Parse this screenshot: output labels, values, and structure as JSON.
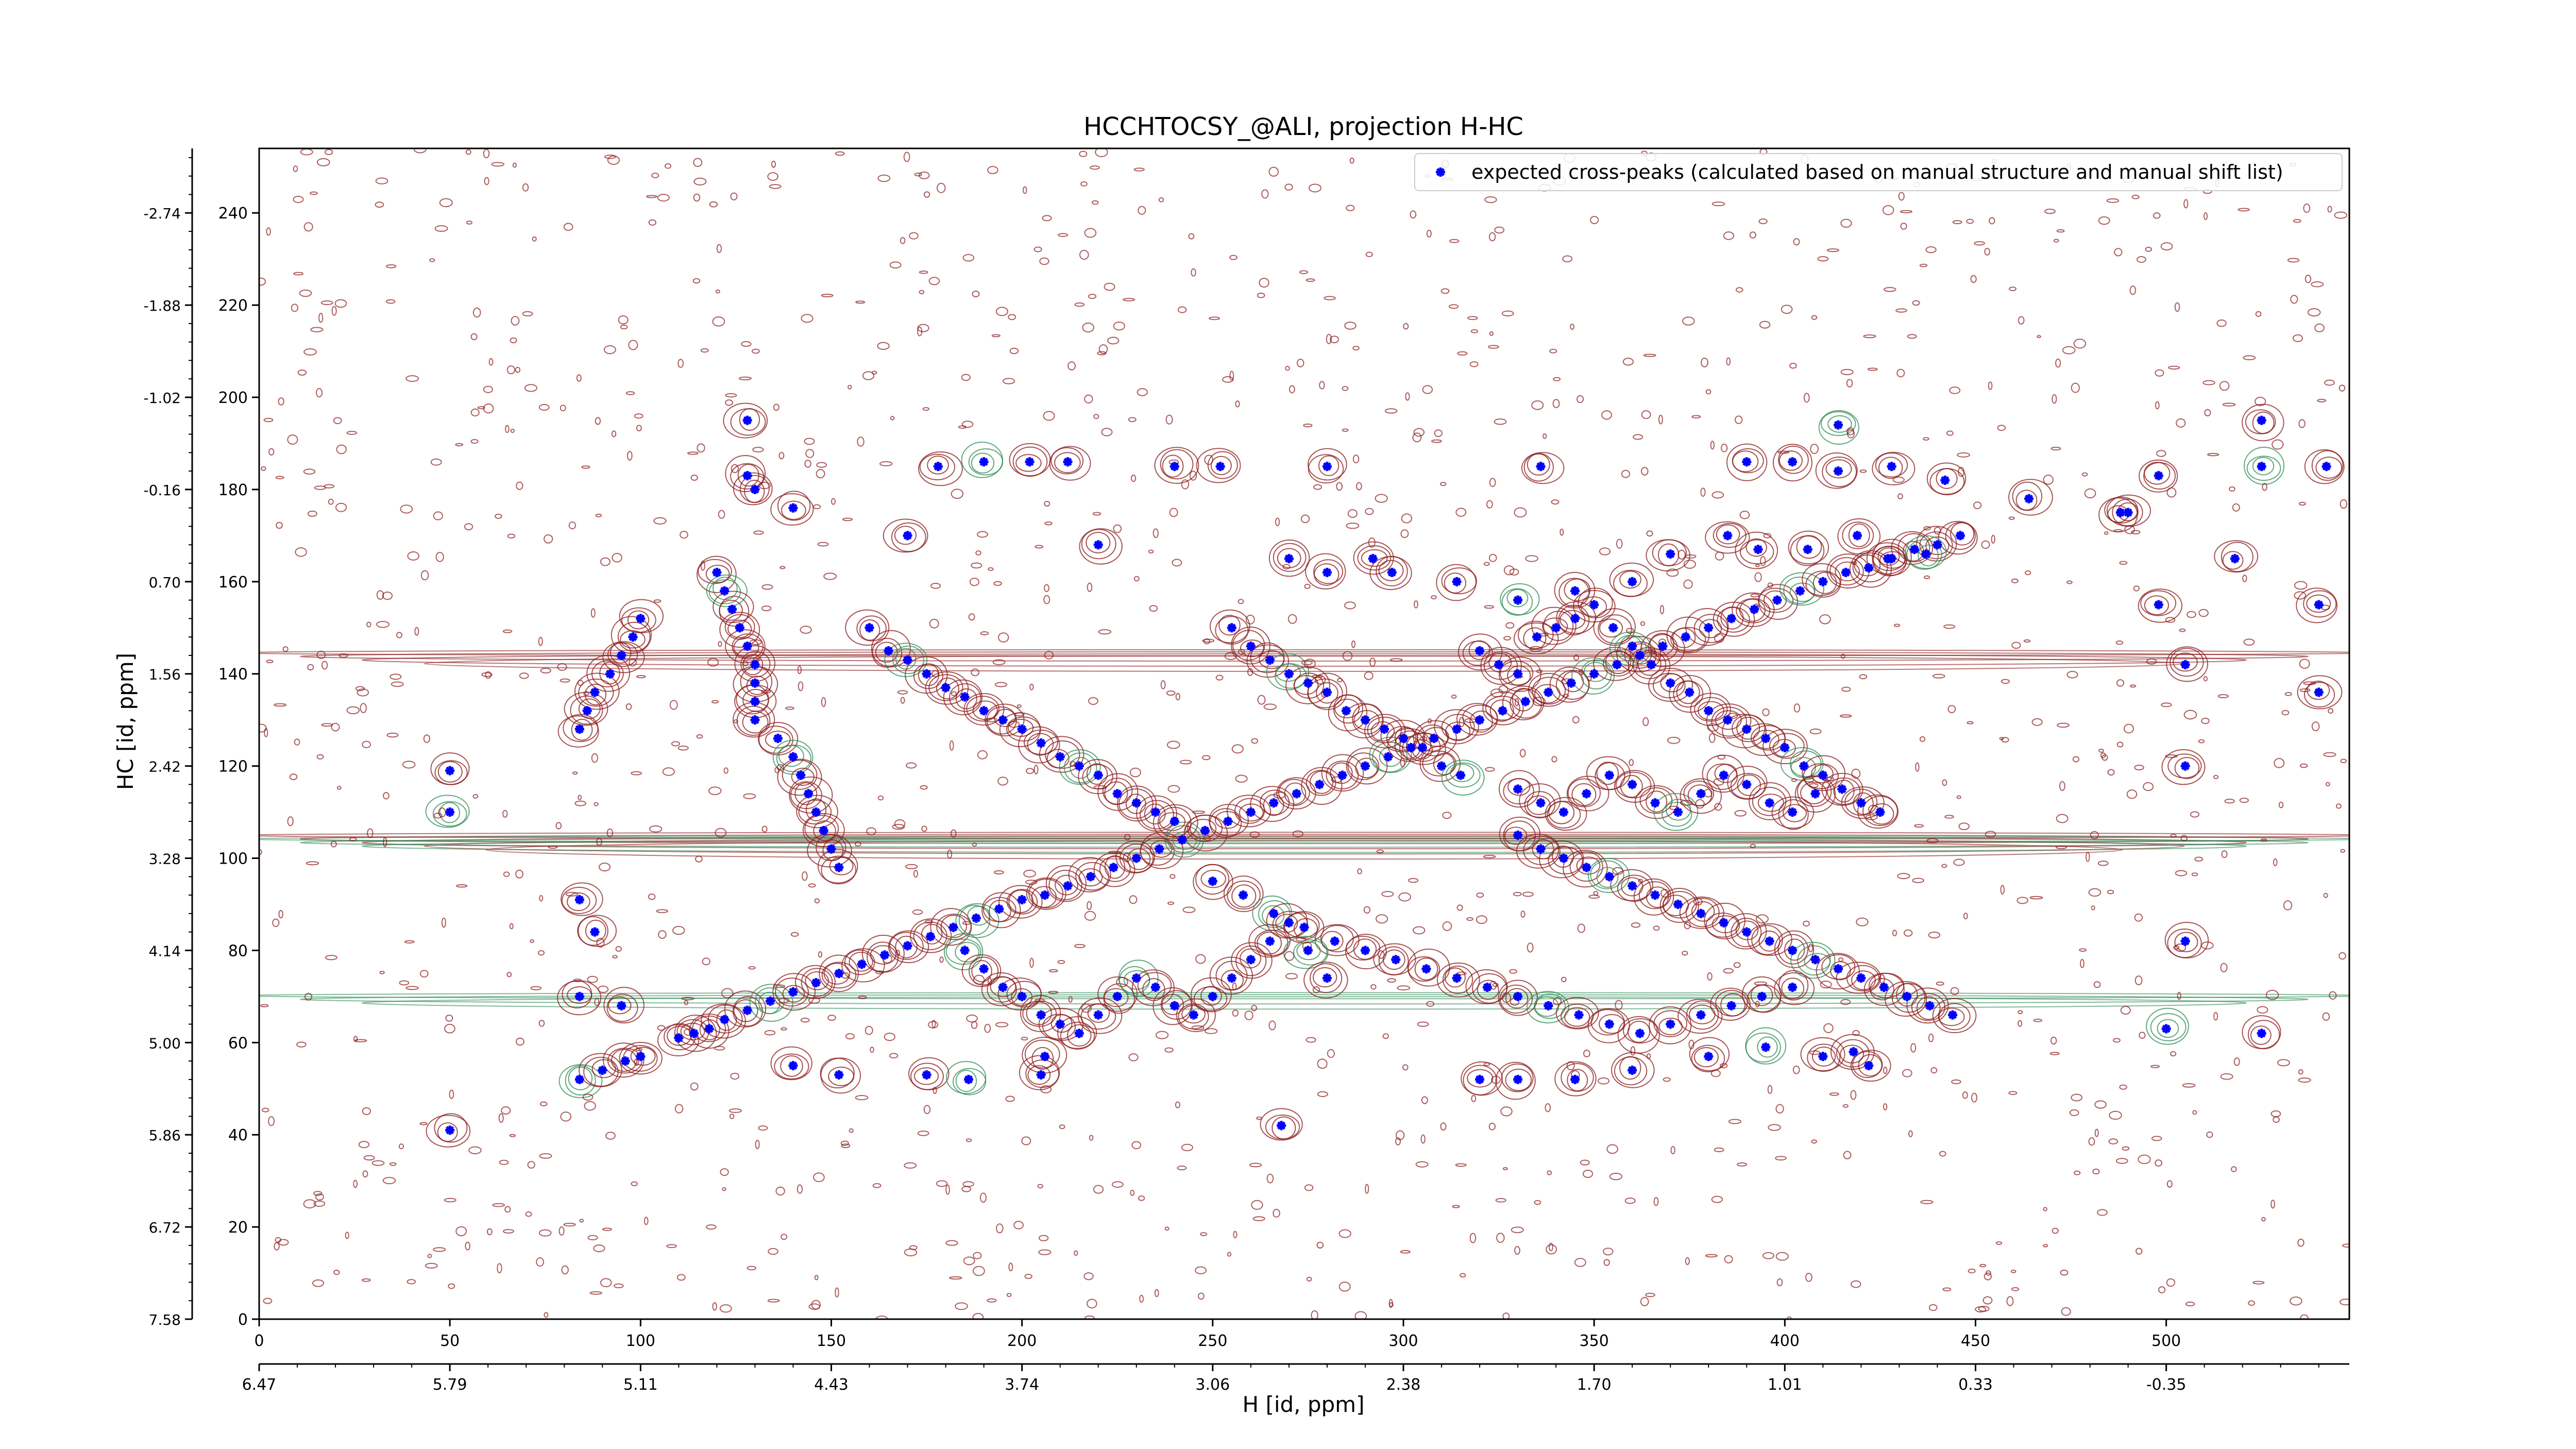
{
  "chart_data": {
    "type": "scatter",
    "title": "HCCHTOCSY_@ALI, projection H-HC",
    "xlabel": "H [id, ppm]",
    "ylabel": "HC [id, ppm]",
    "xlim": [
      0,
      548
    ],
    "ylim": [
      0,
      254
    ],
    "x_ticks": [
      0,
      50,
      100,
      150,
      200,
      250,
      300,
      350,
      400,
      450,
      500
    ],
    "y_ticks": [
      0,
      20,
      40,
      60,
      80,
      100,
      120,
      140,
      160,
      180,
      200,
      220,
      240
    ],
    "secondary_x_ticks": [
      {
        "pos": 0,
        "label": "6.47"
      },
      {
        "pos": 50,
        "label": "5.79"
      },
      {
        "pos": 100,
        "label": "5.11"
      },
      {
        "pos": 150,
        "label": "4.43"
      },
      {
        "pos": 200,
        "label": "3.74"
      },
      {
        "pos": 250,
        "label": "3.06"
      },
      {
        "pos": 300,
        "label": "2.38"
      },
      {
        "pos": 350,
        "label": "1.70"
      },
      {
        "pos": 400,
        "label": "1.01"
      },
      {
        "pos": 450,
        "label": "0.33"
      },
      {
        "pos": 500,
        "label": "-0.35"
      }
    ],
    "secondary_y_ticks": [
      {
        "pos": 0,
        "label": "7.58"
      },
      {
        "pos": 20,
        "label": "6.72"
      },
      {
        "pos": 40,
        "label": "5.86"
      },
      {
        "pos": 60,
        "label": "5.00"
      },
      {
        "pos": 80,
        "label": "4.14"
      },
      {
        "pos": 100,
        "label": "3.28"
      },
      {
        "pos": 120,
        "label": "2.42"
      },
      {
        "pos": 140,
        "label": "1.56"
      },
      {
        "pos": 160,
        "label": "0.70"
      },
      {
        "pos": 180,
        "label": "-0.16"
      },
      {
        "pos": 200,
        "label": "-1.02"
      },
      {
        "pos": 220,
        "label": "-1.88"
      },
      {
        "pos": 240,
        "label": "-2.74"
      }
    ],
    "legend": {
      "placement": "top-right",
      "entries": [
        "expected cross-peaks (calculated based on manual structure and manual shift list)"
      ]
    },
    "colors": {
      "marker": "#0000ff",
      "contour_positive": "#8b1a1a",
      "contour_negative": "#2e8b57",
      "frame": "#000000"
    },
    "series": [
      {
        "name": "expected cross-peaks (calculated based on manual structure and manual shift list)",
        "points": [
          [
            84,
            52
          ],
          [
            90,
            54
          ],
          [
            96,
            56
          ],
          [
            100,
            57
          ],
          [
            110,
            61
          ],
          [
            114,
            62
          ],
          [
            118,
            63
          ],
          [
            122,
            65
          ],
          [
            128,
            67
          ],
          [
            134,
            69
          ],
          [
            140,
            71
          ],
          [
            146,
            73
          ],
          [
            152,
            75
          ],
          [
            158,
            77
          ],
          [
            164,
            79
          ],
          [
            170,
            81
          ],
          [
            176,
            83
          ],
          [
            182,
            85
          ],
          [
            188,
            87
          ],
          [
            194,
            89
          ],
          [
            200,
            91
          ],
          [
            206,
            92
          ],
          [
            212,
            94
          ],
          [
            218,
            96
          ],
          [
            224,
            98
          ],
          [
            230,
            100
          ],
          [
            236,
            102
          ],
          [
            242,
            104
          ],
          [
            248,
            106
          ],
          [
            254,
            108
          ],
          [
            260,
            110
          ],
          [
            266,
            112
          ],
          [
            272,
            114
          ],
          [
            278,
            116
          ],
          [
            284,
            118
          ],
          [
            290,
            120
          ],
          [
            296,
            122
          ],
          [
            302,
            124
          ],
          [
            308,
            126
          ],
          [
            314,
            128
          ],
          [
            320,
            130
          ],
          [
            326,
            132
          ],
          [
            332,
            134
          ],
          [
            338,
            136
          ],
          [
            344,
            138
          ],
          [
            350,
            140
          ],
          [
            356,
            142
          ],
          [
            362,
            144
          ],
          [
            368,
            146
          ],
          [
            374,
            148
          ],
          [
            380,
            150
          ],
          [
            386,
            152
          ],
          [
            392,
            154
          ],
          [
            398,
            156
          ],
          [
            404,
            158
          ],
          [
            410,
            160
          ],
          [
            416,
            162
          ],
          [
            422,
            163
          ],
          [
            428,
            165
          ],
          [
            434,
            167
          ],
          [
            440,
            168
          ],
          [
            446,
            170
          ],
          [
            50,
            41
          ],
          [
            50,
            110
          ],
          [
            50,
            119
          ],
          [
            84,
            70
          ],
          [
            88,
            84
          ],
          [
            84,
            91
          ],
          [
            95,
            68
          ],
          [
            140,
            55
          ],
          [
            152,
            53
          ],
          [
            175,
            53
          ],
          [
            186,
            52
          ],
          [
            205,
            53
          ],
          [
            206,
            57
          ],
          [
            268,
            42
          ],
          [
            320,
            52
          ],
          [
            330,
            52
          ],
          [
            345,
            52
          ],
          [
            360,
            54
          ],
          [
            380,
            57
          ],
          [
            395,
            59
          ],
          [
            410,
            57
          ],
          [
            418,
            58
          ],
          [
            422,
            55
          ],
          [
            128,
            195
          ],
          [
            128,
            183
          ],
          [
            130,
            180
          ],
          [
            140,
            176
          ],
          [
            178,
            185
          ],
          [
            190,
            186
          ],
          [
            202,
            186
          ],
          [
            212,
            186
          ],
          [
            240,
            185
          ],
          [
            252,
            185
          ],
          [
            280,
            185
          ],
          [
            336,
            185
          ],
          [
            390,
            186
          ],
          [
            402,
            186
          ],
          [
            414,
            194
          ],
          [
            414,
            184
          ],
          [
            428,
            185
          ],
          [
            442,
            182
          ],
          [
            464,
            178
          ],
          [
            488,
            175
          ],
          [
            498,
            183
          ],
          [
            490,
            175
          ],
          [
            525,
            195
          ],
          [
            525,
            185
          ],
          [
            542,
            185
          ],
          [
            540,
            155
          ],
          [
            540,
            136
          ],
          [
            518,
            165
          ],
          [
            498,
            155
          ],
          [
            505,
            142
          ],
          [
            505,
            120
          ],
          [
            505,
            82
          ],
          [
            500,
            63
          ],
          [
            525,
            62
          ],
          [
            170,
            170
          ],
          [
            220,
            168
          ],
          [
            270,
            165
          ],
          [
            280,
            162
          ],
          [
            297,
            162
          ],
          [
            292,
            165
          ],
          [
            314,
            160
          ],
          [
            330,
            156
          ],
          [
            345,
            158
          ],
          [
            360,
            160
          ],
          [
            370,
            166
          ],
          [
            385,
            170
          ],
          [
            393,
            167
          ],
          [
            406,
            167
          ],
          [
            419,
            170
          ],
          [
            427,
            165
          ],
          [
            437,
            166
          ],
          [
            100,
            152
          ],
          [
            98,
            148
          ],
          [
            95,
            144
          ],
          [
            92,
            140
          ],
          [
            88,
            136
          ],
          [
            86,
            132
          ],
          [
            84,
            128
          ],
          [
            120,
            162
          ],
          [
            122,
            158
          ],
          [
            124,
            154
          ],
          [
            126,
            150
          ],
          [
            128,
            146
          ],
          [
            130,
            142
          ],
          [
            130,
            138
          ],
          [
            130,
            134
          ],
          [
            130,
            130
          ],
          [
            136,
            126
          ],
          [
            140,
            122
          ],
          [
            142,
            118
          ],
          [
            144,
            114
          ],
          [
            146,
            110
          ],
          [
            148,
            106
          ],
          [
            150,
            102
          ],
          [
            152,
            98
          ],
          [
            160,
            150
          ],
          [
            165,
            145
          ],
          [
            170,
            143
          ],
          [
            175,
            140
          ],
          [
            180,
            137
          ],
          [
            185,
            135
          ],
          [
            190,
            132
          ],
          [
            195,
            130
          ],
          [
            200,
            128
          ],
          [
            205,
            125
          ],
          [
            210,
            122
          ],
          [
            215,
            120
          ],
          [
            220,
            118
          ],
          [
            225,
            114
          ],
          [
            230,
            112
          ],
          [
            235,
            110
          ],
          [
            240,
            108
          ],
          [
            255,
            150
          ],
          [
            260,
            146
          ],
          [
            265,
            143
          ],
          [
            270,
            140
          ],
          [
            275,
            138
          ],
          [
            280,
            136
          ],
          [
            285,
            132
          ],
          [
            290,
            130
          ],
          [
            295,
            128
          ],
          [
            300,
            126
          ],
          [
            305,
            124
          ],
          [
            310,
            120
          ],
          [
            315,
            118
          ],
          [
            320,
            145
          ],
          [
            325,
            142
          ],
          [
            330,
            140
          ],
          [
            335,
            148
          ],
          [
            340,
            150
          ],
          [
            345,
            152
          ],
          [
            350,
            155
          ],
          [
            355,
            150
          ],
          [
            360,
            146
          ],
          [
            365,
            142
          ],
          [
            370,
            138
          ],
          [
            375,
            136
          ],
          [
            380,
            132
          ],
          [
            385,
            130
          ],
          [
            390,
            128
          ],
          [
            395,
            126
          ],
          [
            400,
            124
          ],
          [
            405,
            120
          ],
          [
            410,
            118
          ],
          [
            415,
            115
          ],
          [
            420,
            112
          ],
          [
            425,
            110
          ],
          [
            330,
            105
          ],
          [
            336,
            102
          ],
          [
            342,
            100
          ],
          [
            348,
            98
          ],
          [
            354,
            96
          ],
          [
            360,
            94
          ],
          [
            366,
            92
          ],
          [
            372,
            90
          ],
          [
            378,
            88
          ],
          [
            384,
            86
          ],
          [
            390,
            84
          ],
          [
            396,
            82
          ],
          [
            402,
            80
          ],
          [
            408,
            78
          ],
          [
            414,
            76
          ],
          [
            420,
            74
          ],
          [
            426,
            72
          ],
          [
            432,
            70
          ],
          [
            438,
            68
          ],
          [
            444,
            66
          ],
          [
            250,
            95
          ],
          [
            258,
            92
          ],
          [
            266,
            88
          ],
          [
            274,
            85
          ],
          [
            282,
            82
          ],
          [
            290,
            80
          ],
          [
            298,
            78
          ],
          [
            306,
            76
          ],
          [
            314,
            74
          ],
          [
            322,
            72
          ],
          [
            330,
            70
          ],
          [
            338,
            68
          ],
          [
            346,
            66
          ],
          [
            354,
            64
          ],
          [
            362,
            62
          ],
          [
            370,
            64
          ],
          [
            378,
            66
          ],
          [
            386,
            68
          ],
          [
            394,
            70
          ],
          [
            402,
            72
          ],
          [
            185,
            80
          ],
          [
            190,
            76
          ],
          [
            195,
            72
          ],
          [
            200,
            70
          ],
          [
            205,
            66
          ],
          [
            210,
            64
          ],
          [
            215,
            62
          ],
          [
            220,
            66
          ],
          [
            225,
            70
          ],
          [
            230,
            74
          ],
          [
            235,
            72
          ],
          [
            240,
            68
          ],
          [
            245,
            66
          ],
          [
            250,
            70
          ],
          [
            255,
            74
          ],
          [
            260,
            78
          ],
          [
            265,
            82
          ],
          [
            270,
            86
          ],
          [
            275,
            80
          ],
          [
            280,
            74
          ],
          [
            330,
            115
          ],
          [
            336,
            112
          ],
          [
            342,
            110
          ],
          [
            348,
            114
          ],
          [
            354,
            118
          ],
          [
            360,
            116
          ],
          [
            366,
            112
          ],
          [
            372,
            110
          ],
          [
            378,
            114
          ],
          [
            384,
            118
          ],
          [
            390,
            116
          ],
          [
            396,
            112
          ],
          [
            402,
            110
          ],
          [
            408,
            114
          ]
        ]
      }
    ]
  }
}
